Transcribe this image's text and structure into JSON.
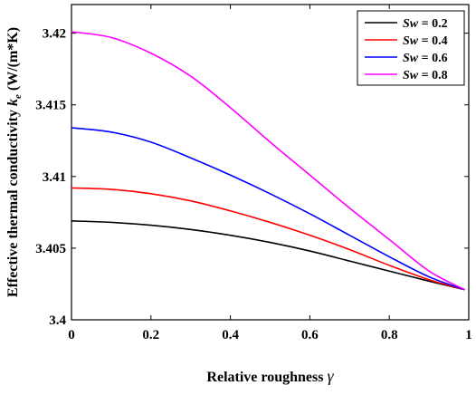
{
  "chart_data": {
    "type": "line",
    "title": "",
    "xlabel": "Relative roughness",
    "xlabel_symbol": "γ",
    "ylabel": "Effective thermal conductivity",
    "ylabel_symbol": "k",
    "ylabel_subscript": "e",
    "ylabel_unit": "(W/(m*K)",
    "xlim": [
      0,
      1
    ],
    "ylim": [
      3.4,
      3.422
    ],
    "xticks": [
      0,
      0.2,
      0.4,
      0.6,
      0.8,
      1
    ],
    "xtick_labels": [
      "0",
      "0.2",
      "0.4",
      "0.6",
      "0.8",
      "1"
    ],
    "yticks": [
      3.4,
      3.405,
      3.41,
      3.415,
      3.42
    ],
    "ytick_labels": [
      "3.4",
      "3.405",
      "3.41",
      "3.415",
      "3.42"
    ],
    "grid": false,
    "legend_position": "top-right",
    "x": [
      0,
      0.1,
      0.2,
      0.3,
      0.4,
      0.5,
      0.6,
      0.7,
      0.8,
      0.9,
      0.99
    ],
    "series": [
      {
        "name_var": "Sw",
        "name_value": "= 0.2",
        "color": "#000000",
        "values": [
          3.4069,
          3.4068,
          3.4066,
          3.4063,
          3.4059,
          3.4054,
          3.4048,
          3.4041,
          3.4034,
          3.4027,
          3.4021
        ]
      },
      {
        "name_var": "Sw",
        "name_value": "= 0.4",
        "color": "#ff0000",
        "values": [
          3.4092,
          3.4091,
          3.4088,
          3.4083,
          3.4076,
          3.4068,
          3.4059,
          3.4049,
          3.4038,
          3.4028,
          3.4021
        ]
      },
      {
        "name_var": "Sw",
        "name_value": "= 0.6",
        "color": "#0000ff",
        "values": [
          3.4134,
          3.4131,
          3.4124,
          3.4113,
          3.4101,
          3.4088,
          3.4074,
          3.4059,
          3.4044,
          3.403,
          3.4021
        ]
      },
      {
        "name_var": "Sw",
        "name_value": "= 0.8",
        "color": "#ff00ff",
        "values": [
          3.4201,
          3.4197,
          3.4186,
          3.417,
          3.4148,
          3.4124,
          3.4101,
          3.4078,
          3.4056,
          3.4034,
          3.4021
        ]
      }
    ]
  }
}
